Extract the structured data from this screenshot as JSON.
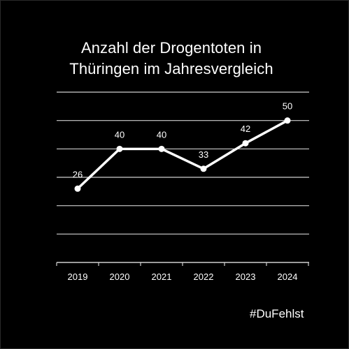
{
  "chart_data": {
    "type": "line",
    "title": "Anzahl der Drogentoten in Thüringen im Jahresvergleich",
    "title_lines": [
      "Anzahl der Drogentoten in",
      "Thüringen im Jahresvergleich"
    ],
    "categories": [
      "2019",
      "2020",
      "2021",
      "2022",
      "2023",
      "2024"
    ],
    "series": [
      {
        "values": [
          26,
          40,
          40,
          33,
          42,
          50
        ],
        "color": "#ffffff"
      }
    ],
    "data_labels": [
      "26",
      "40",
      "40",
      "33",
      "42",
      "50"
    ],
    "xlabel": "",
    "ylabel": "",
    "ylim": [
      0,
      60
    ],
    "grid": true,
    "legend": "none"
  },
  "hashtag": "#DuFehlst",
  "colors": {
    "background": "#000000",
    "line": "#ffffff",
    "grid": "#cfcfcf",
    "text": "#ffffff"
  }
}
